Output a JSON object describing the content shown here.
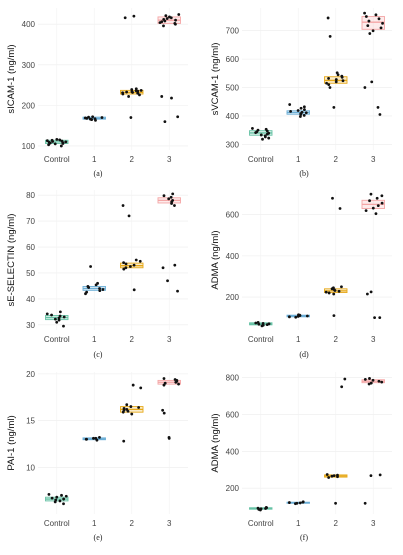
{
  "categories": [
    "Control",
    "1",
    "2",
    "3"
  ],
  "group_colors": [
    "#66c2a5",
    "#6baed6",
    "#e6a817",
    "#f4a6a6"
  ],
  "chart_data": [
    {
      "type": "box-scatter",
      "caption": "(a)",
      "ylabel": "sICAM-1 (ng/ml)",
      "ylim": [
        90,
        440
      ],
      "yticks": [
        100,
        200,
        300,
        400
      ],
      "boxes": [
        {
          "q1": 106,
          "median": 110,
          "q3": 114
        },
        {
          "q1": 166,
          "median": 168,
          "q3": 171
        },
        {
          "q1": 228,
          "median": 232,
          "q3": 237
        },
        {
          "q1": 402,
          "median": 410,
          "q3": 418
        }
      ],
      "points": [
        [
          100,
          103,
          105,
          106,
          107,
          108,
          109,
          110,
          111,
          112,
          113,
          114,
          115,
          116
        ],
        [
          163,
          165,
          166,
          167,
          168,
          169,
          170,
          171,
          172
        ],
        [
          170,
          222,
          226,
          228,
          230,
          231,
          232,
          233,
          234,
          235,
          236,
          237,
          239,
          241,
          416,
          420
        ],
        [
          160,
          172,
          218,
          222,
          396,
          400,
          402,
          404,
          406,
          408,
          410,
          412,
          414,
          416,
          418,
          421,
          424
        ]
      ]
    },
    {
      "type": "box-scatter",
      "caption": "(b)",
      "ylabel": "sVCAM-1 (ng/ml)",
      "ylim": [
        280,
        780
      ],
      "yticks": [
        300,
        400,
        500,
        600,
        700
      ],
      "boxes": [
        {
          "q1": 332,
          "median": 340,
          "q3": 348
        },
        {
          "q1": 406,
          "median": 412,
          "q3": 418
        },
        {
          "q1": 515,
          "median": 525,
          "q3": 538
        },
        {
          "q1": 705,
          "median": 730,
          "q3": 750
        }
      ],
      "points": [
        [
          318,
          322,
          326,
          330,
          333,
          336,
          339,
          341,
          344,
          347,
          350,
          353,
          356
        ],
        [
          398,
          402,
          405,
          408,
          411,
          413,
          416,
          419,
          422,
          427,
          432,
          440
        ],
        [
          430,
          500,
          510,
          515,
          520,
          524,
          528,
          532,
          536,
          540,
          545,
          552,
          680,
          745
        ],
        [
          405,
          430,
          500,
          520,
          690,
          700,
          710,
          718,
          726,
          734,
          742,
          750,
          756,
          762
        ]
      ]
    },
    {
      "type": "box-scatter",
      "caption": "(c)",
      "ylabel": "sE-SELECTIN (ng/ml)",
      "ylim": [
        28,
        82
      ],
      "yticks": [
        30,
        40,
        50,
        60,
        70,
        80
      ],
      "boxes": [
        {
          "q1": 32.0,
          "median": 32.8,
          "q3": 33.6
        },
        {
          "q1": 43.3,
          "median": 44.0,
          "q3": 44.8
        },
        {
          "q1": 52.0,
          "median": 52.8,
          "q3": 53.8
        },
        {
          "q1": 77.0,
          "median": 78.0,
          "q3": 79.0
        }
      ],
      "points": [
        [
          29.5,
          31.0,
          31.8,
          32.2,
          32.6,
          33.0,
          33.4,
          33.8,
          34.2,
          35.0
        ],
        [
          42.0,
          42.6,
          43.2,
          43.6,
          44.0,
          44.4,
          44.8,
          45.4,
          46.0,
          52.5
        ],
        [
          43.5,
          51.5,
          52.0,
          52.5,
          53.0,
          53.5,
          54.0,
          54.5,
          55.0,
          72.0,
          76.0
        ],
        [
          43.0,
          47.0,
          52.0,
          53.0,
          76.0,
          76.8,
          77.4,
          78.0,
          78.6,
          79.2,
          79.8,
          80.5
        ]
      ]
    },
    {
      "type": "box-scatter",
      "caption": "(d)",
      "ylabel": "ADMA (ng/ml)",
      "ylim": [
        40,
        720
      ],
      "yticks": [
        200,
        400,
        600
      ],
      "boxes": [
        {
          "q1": 65,
          "median": 70,
          "q3": 75
        },
        {
          "q1": 104,
          "median": 108,
          "q3": 112
        },
        {
          "q1": 222,
          "median": 230,
          "q3": 240
        },
        {
          "q1": 630,
          "median": 650,
          "q3": 670
        }
      ],
      "points": [
        [
          60,
          63,
          66,
          68,
          70,
          72,
          74,
          77
        ],
        [
          102,
          104,
          106,
          108,
          110,
          112,
          114
        ],
        [
          110,
          215,
          220,
          224,
          228,
          232,
          236,
          240,
          245,
          250,
          630,
          680
        ],
        [
          100,
          215,
          225,
          100,
          605,
          620,
          632,
          644,
          656,
          668,
          680,
          692,
          700
        ]
      ]
    },
    {
      "type": "box-scatter",
      "caption": "(e)",
      "ylabel": "PAI-1 (ng/ml)",
      "ylim": [
        5,
        20.2
      ],
      "yticks": [
        10,
        15,
        20
      ],
      "boxes": [
        {
          "q1": 6.4,
          "median": 6.6,
          "q3": 6.8
        },
        {
          "q1": 12.95,
          "median": 13.05,
          "q3": 13.15
        },
        {
          "q1": 15.9,
          "median": 16.2,
          "q3": 16.5
        },
        {
          "q1": 18.9,
          "median": 19.1,
          "q3": 19.3
        }
      ],
      "points": [
        [
          6.1,
          6.3,
          6.4,
          6.5,
          6.6,
          6.7,
          6.8,
          6.9,
          7.0,
          7.1
        ],
        [
          12.9,
          13.0,
          13.0,
          13.1,
          13.1,
          13.2
        ],
        [
          12.8,
          15.7,
          15.9,
          16.0,
          16.1,
          16.2,
          16.3,
          16.4,
          16.5,
          16.7,
          18.5,
          18.8
        ],
        [
          13.1,
          13.2,
          15.8,
          16.1,
          18.8,
          18.9,
          19.0,
          19.1,
          19.2,
          19.3,
          19.4,
          19.5
        ]
      ]
    },
    {
      "type": "box-scatter",
      "caption": "(f)",
      "ylabel": "ADMA (ng/ml)",
      "ylim": [
        60,
        830
      ],
      "yticks": [
        200,
        400,
        600,
        800
      ],
      "boxes": [
        {
          "q1": 86,
          "median": 90,
          "q3": 94
        },
        {
          "q1": 118,
          "median": 121,
          "q3": 124
        },
        {
          "q1": 260,
          "median": 266,
          "q3": 272
        },
        {
          "q1": 772,
          "median": 780,
          "q3": 788
        }
      ],
      "points": [
        [
          82,
          85,
          88,
          90,
          92,
          94,
          96
        ],
        [
          116,
          118,
          120,
          122,
          124,
          126
        ],
        [
          118,
          258,
          262,
          265,
          268,
          271,
          274,
          750,
          792
        ],
        [
          118,
          268,
          272,
          765,
          770,
          775,
          780,
          785,
          790,
          795
        ]
      ]
    }
  ]
}
